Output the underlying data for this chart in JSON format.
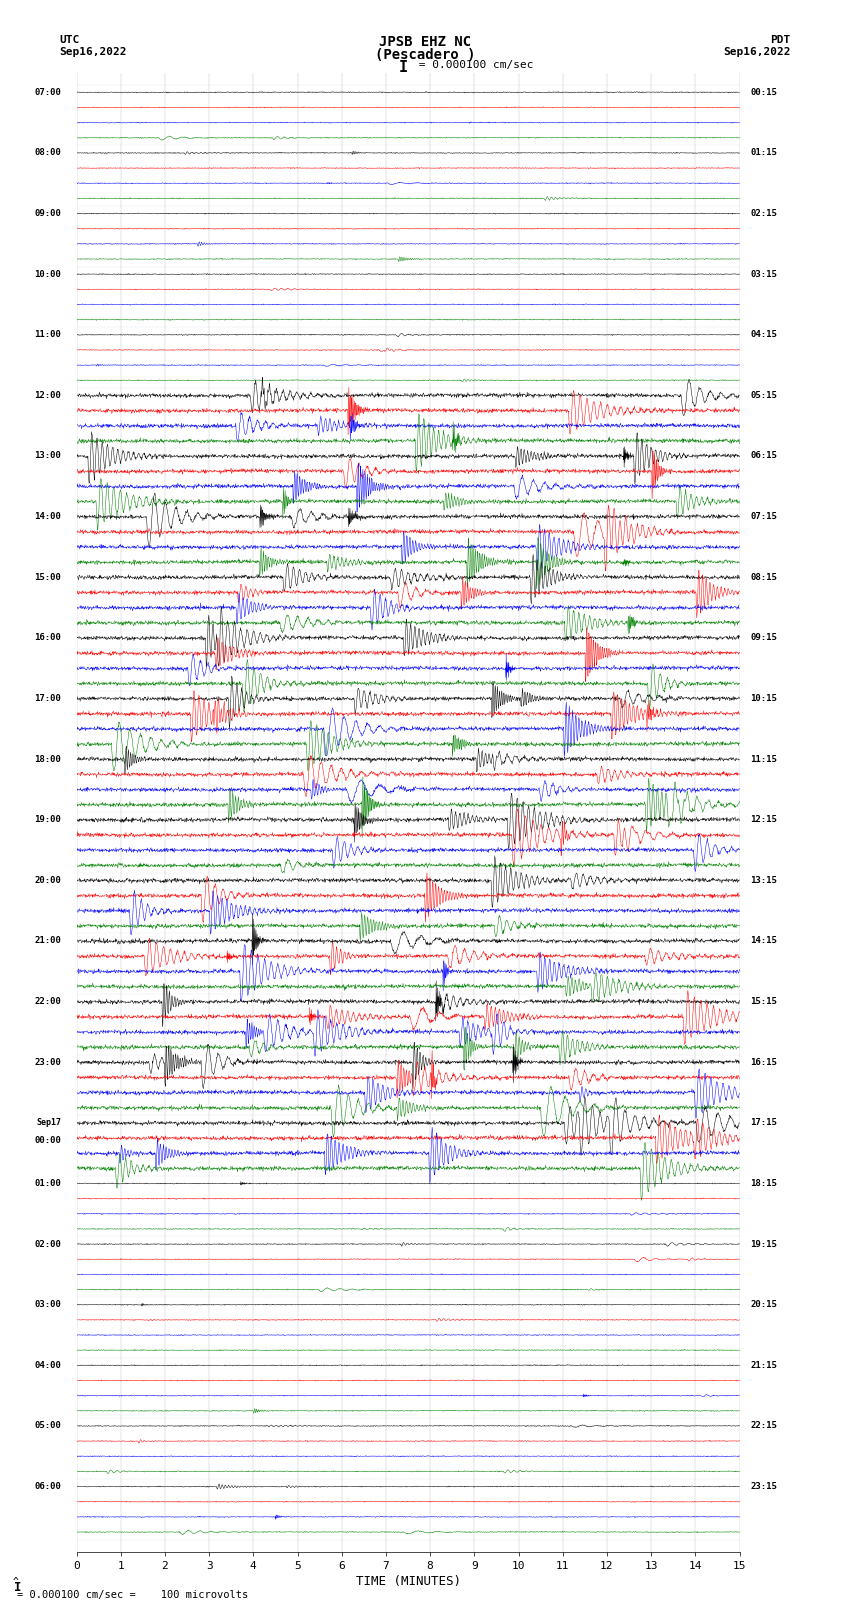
{
  "title_line1": "JPSB EHZ NC",
  "title_line2": "(Pescadero )",
  "scale_label": "= 0.000100 cm/sec",
  "bottom_label": "= 0.000100 cm/sec =    100 microvolts",
  "xlabel": "TIME (MINUTES)",
  "left_header_line1": "UTC",
  "left_header_line2": "Sep16,2022",
  "right_header_line1": "PDT",
  "right_header_line2": "Sep16,2022",
  "left_times": [
    "07:00",
    "08:00",
    "09:00",
    "10:00",
    "11:00",
    "12:00",
    "13:00",
    "14:00",
    "15:00",
    "16:00",
    "17:00",
    "18:00",
    "19:00",
    "20:00",
    "21:00",
    "22:00",
    "23:00",
    "Sep17\n00:00",
    "01:00",
    "02:00",
    "03:00",
    "04:00",
    "05:00",
    "06:00"
  ],
  "right_times": [
    "00:15",
    "01:15",
    "02:15",
    "03:15",
    "04:15",
    "05:15",
    "06:15",
    "07:15",
    "08:15",
    "09:15",
    "10:15",
    "11:15",
    "12:15",
    "13:15",
    "14:15",
    "15:15",
    "16:15",
    "17:15",
    "18:15",
    "19:15",
    "20:15",
    "21:15",
    "22:15",
    "23:15"
  ],
  "n_rows": 24,
  "traces_per_row": 4,
  "colors": [
    "black",
    "red",
    "blue",
    "green"
  ],
  "bg_color": "white",
  "fig_width": 8.5,
  "fig_height": 16.13,
  "xmin": 0,
  "xmax": 15,
  "xticks": [
    0,
    1,
    2,
    3,
    4,
    5,
    6,
    7,
    8,
    9,
    10,
    11,
    12,
    13,
    14,
    15
  ],
  "trace_amp_quiet": 0.012,
  "trace_amp_active": 0.055,
  "active_rows": [
    5,
    6,
    7,
    8,
    9,
    10,
    11,
    12,
    13,
    14,
    15,
    16,
    17
  ],
  "n_points": 1800,
  "linewidth": 0.35
}
